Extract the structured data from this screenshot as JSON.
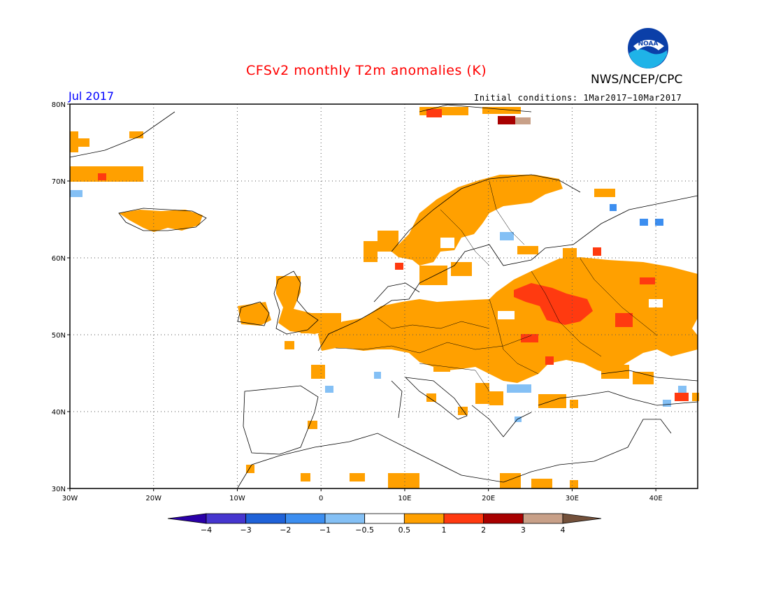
{
  "header": {
    "title": "CFSv2 monthly T2m anomalies (K)",
    "month": "Jul 2017",
    "initial_conditions": "Initial conditions: 1Mar2017−10Mar2017",
    "agency": "NWS/NCEP/CPC",
    "logo_text": "NOAA"
  },
  "map": {
    "lon_range": [
      -30,
      45
    ],
    "lat_range": [
      30,
      80
    ],
    "lat_labels": [
      "30N",
      "40N",
      "50N",
      "60N",
      "70N",
      "80N"
    ],
    "lon_labels": [
      "30W",
      "20W",
      "10W",
      "0",
      "10E",
      "20E",
      "30E",
      "40E"
    ],
    "grid": "dotted"
  },
  "legend": {
    "labels": [
      "−4",
      "−3",
      "−2",
      "−1",
      "−0.5",
      "0.5",
      "1",
      "2",
      "3",
      "4"
    ],
    "colors": [
      "#2a00a8",
      "#4636cf",
      "#1f62d8",
      "#3c8ef0",
      "#84c0f5",
      "#ffffff",
      "#ffa000",
      "#ff3a10",
      "#a80000",
      "#c8a088",
      "#73503a"
    ]
  },
  "colors": {
    "title": "#ff0000",
    "month": "#0000ff",
    "anom_0_5_1": "#ffa000",
    "anom_1_2": "#ff3a10",
    "anom_2_3": "#a80000",
    "anom_3_4": "#c8a088",
    "anom_neg_0_5_1": "#84c0f5"
  }
}
